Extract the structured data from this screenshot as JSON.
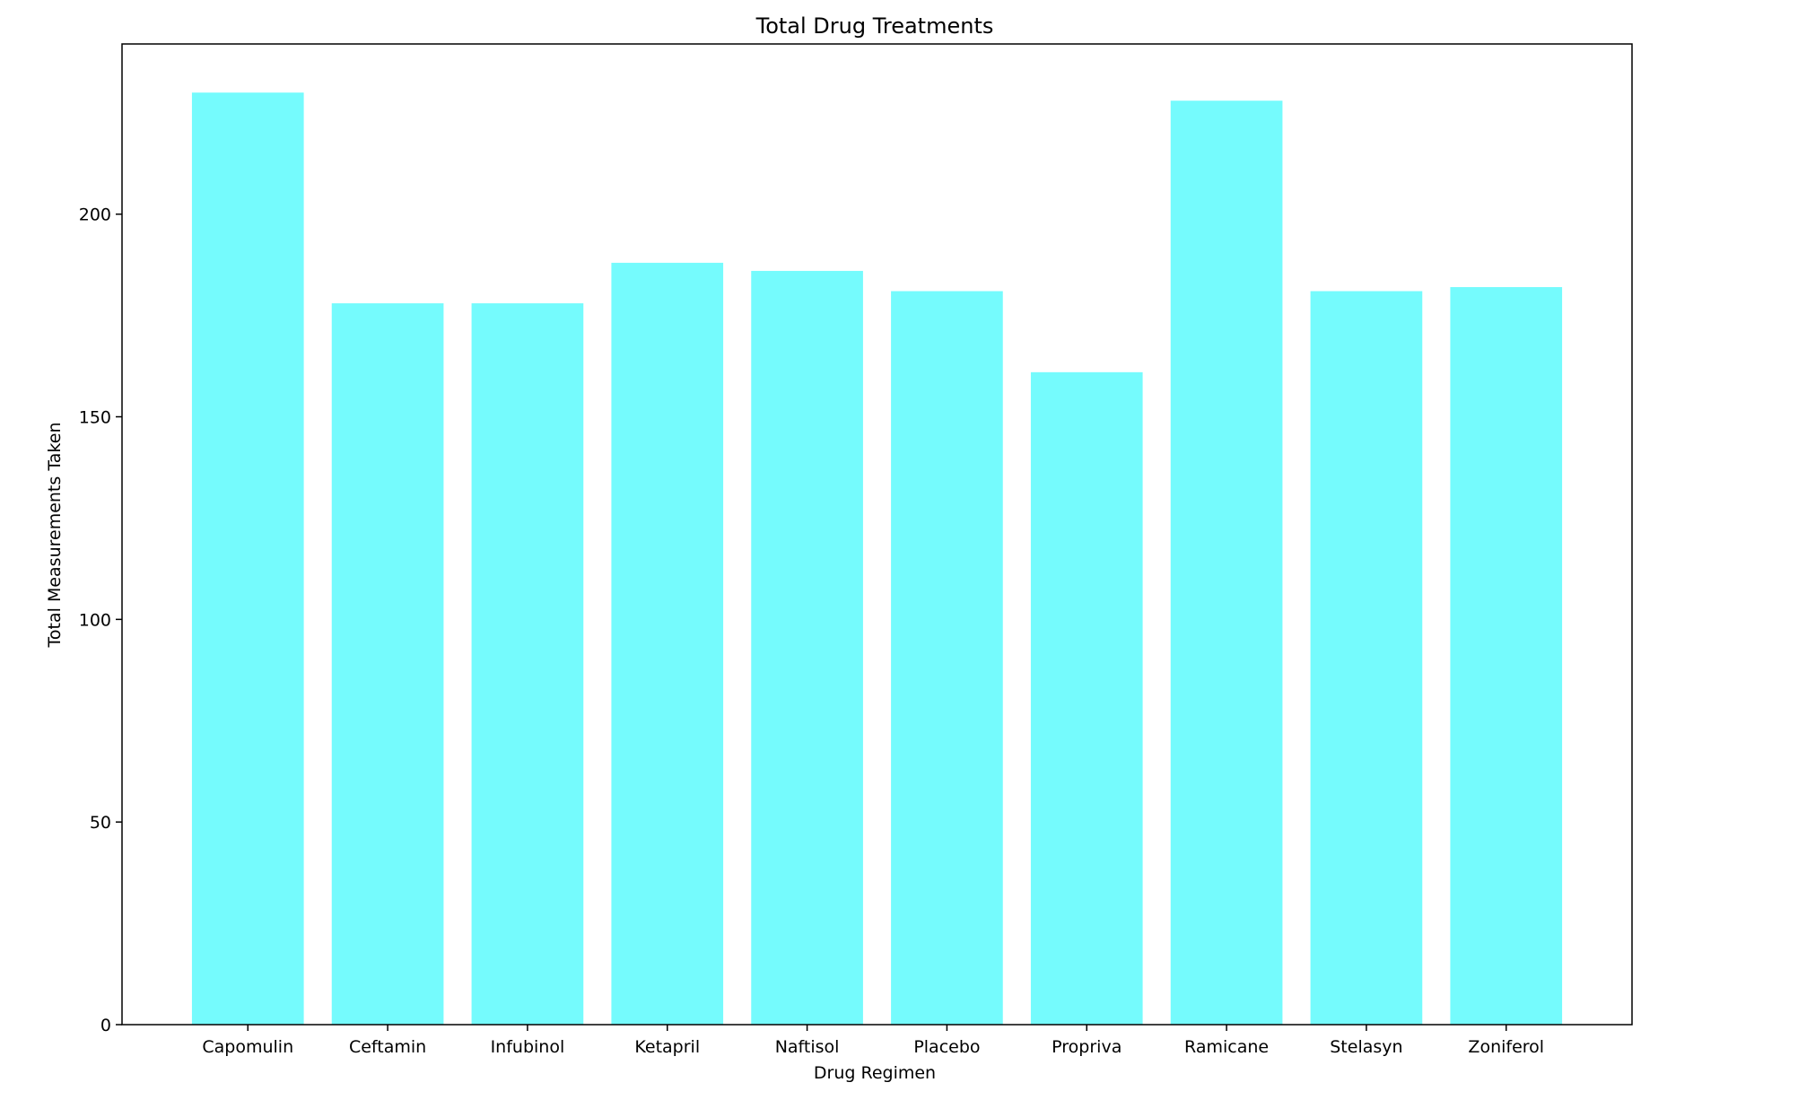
{
  "chart_data": {
    "type": "bar",
    "title": "Total Drug Treatments",
    "xlabel": "Drug Regimen",
    "ylabel": "Total Measurements Taken",
    "categories": [
      "Capomulin",
      "Ceftamin",
      "Infubinol",
      "Ketapril",
      "Naftisol",
      "Placebo",
      "Propriva",
      "Ramicane",
      "Stelasyn",
      "Zoniferol"
    ],
    "values": [
      230,
      178,
      178,
      188,
      186,
      181,
      161,
      228,
      181,
      182
    ],
    "ylim": [
      0,
      242
    ],
    "yticks": [
      0,
      50,
      100,
      150,
      200
    ],
    "ytick_labels": [
      "0",
      "50",
      "100",
      "150",
      "200"
    ],
    "bar_color": "#75fbfd",
    "grid": false,
    "legend": "none"
  }
}
